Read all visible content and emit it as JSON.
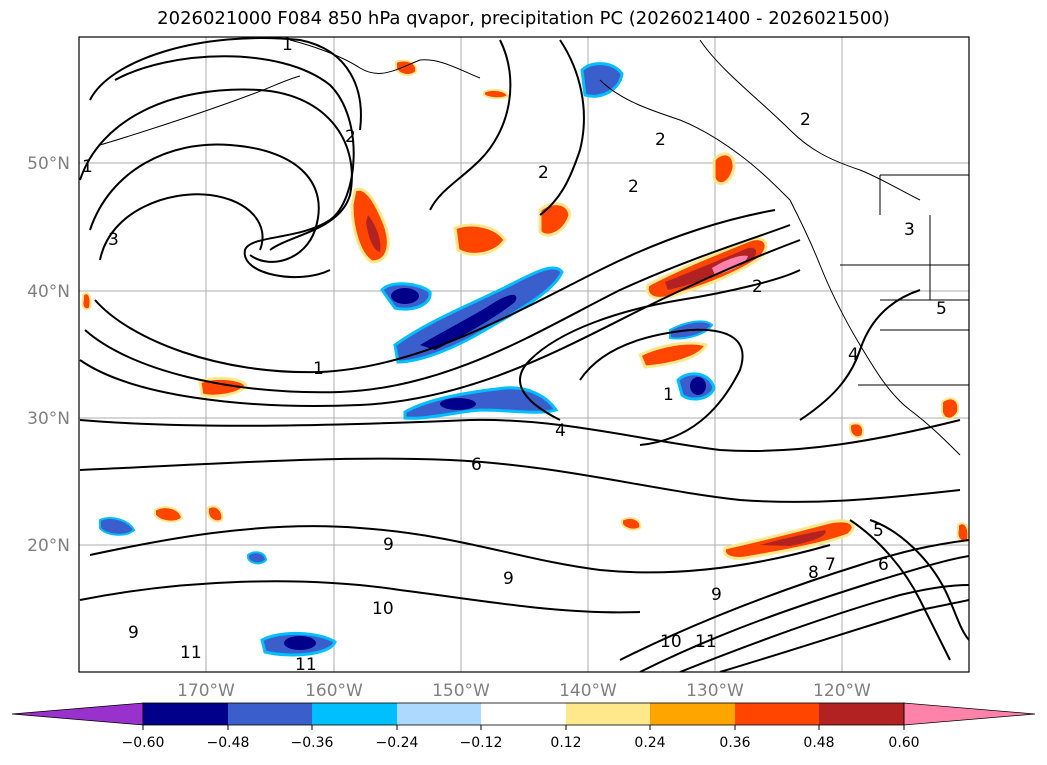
{
  "title": "2026021000 F084 850 hPa qvapor, precipitation PC (2026021400 - 2026021500)",
  "map": {
    "lat_labels": [
      "50°N",
      "40°N",
      "30°N",
      "20°N"
    ],
    "lon_labels": [
      "170°W",
      "160°W",
      "150°W",
      "140°W",
      "130°W",
      "120°W"
    ],
    "contour_labels": [
      "1",
      "1",
      "1",
      "2",
      "2",
      "2",
      "2",
      "2",
      "3",
      "3",
      "4",
      "4",
      "5",
      "5",
      "6",
      "6",
      "7",
      "8",
      "9",
      "9",
      "9",
      "9",
      "10",
      "10",
      "11",
      "11",
      "11",
      "1",
      "2"
    ],
    "precip_areas": [
      {
        "name": "jet-band-negative",
        "category": "-0.48"
      },
      {
        "name": "ne-pacific-positive",
        "category": "0.48"
      },
      {
        "name": "west-coast-positive",
        "category": "0.60"
      },
      {
        "name": "hawaii-east-negative",
        "category": "-0.36"
      },
      {
        "name": "subtropical-positive",
        "category": "0.36"
      }
    ]
  },
  "colorbar": {
    "ticks": [
      "−0.60",
      "−0.48",
      "−0.36",
      "−0.24",
      "−0.12",
      "0.12",
      "0.24",
      "0.36",
      "0.48",
      "0.60"
    ],
    "colors": [
      "#9932CC",
      "#00008B",
      "#3A5FCD",
      "#00BFFF",
      "#ADD8FF",
      "#FFFFFF",
      "#FFE88C",
      "#FFA500",
      "#FF4500",
      "#B22222",
      "#FF82AB"
    ]
  }
}
